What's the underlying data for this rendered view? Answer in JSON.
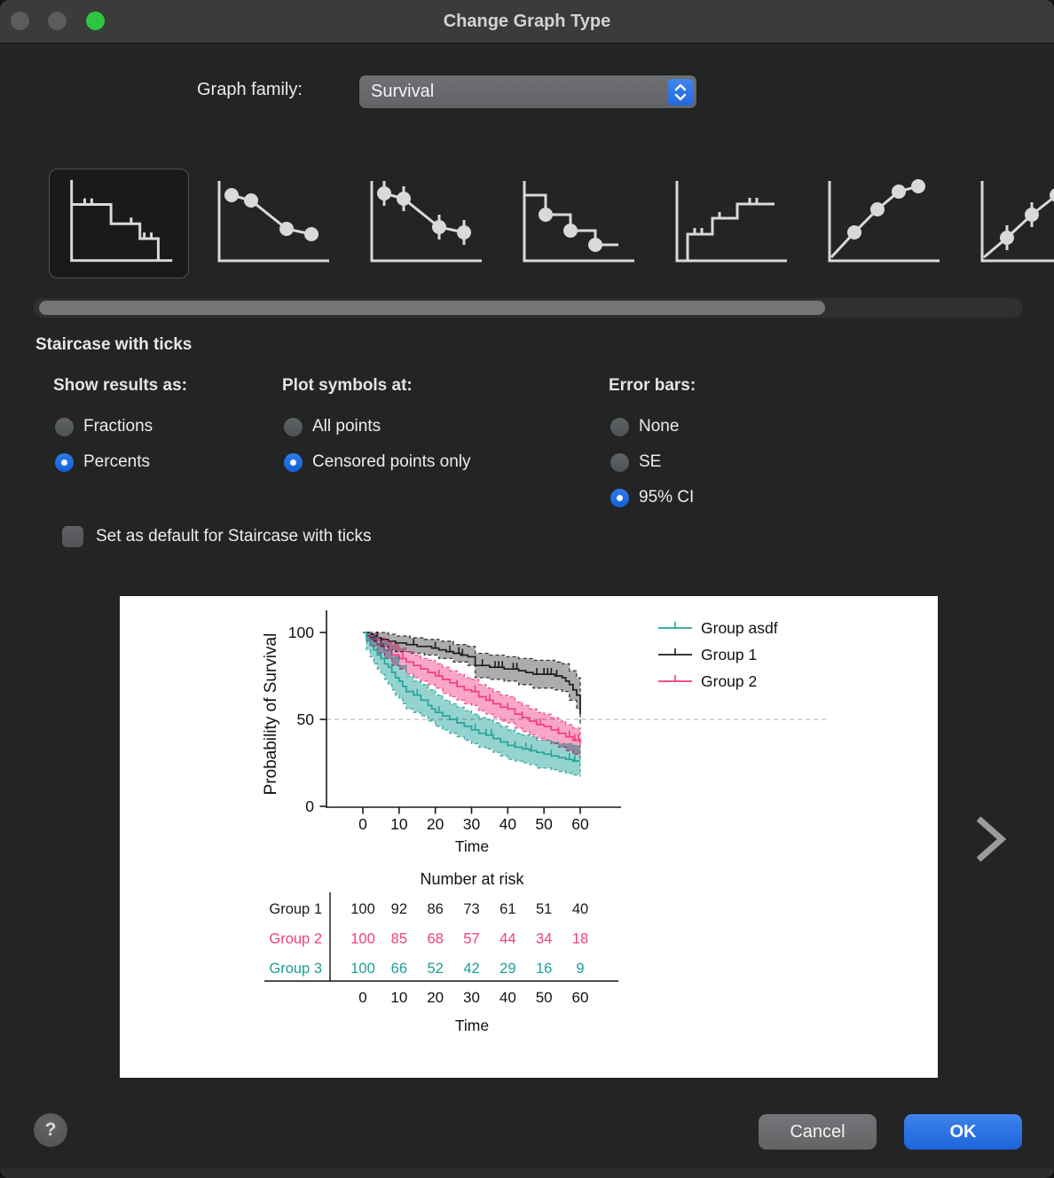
{
  "window": {
    "title": "Change Graph Type"
  },
  "graph_family": {
    "label": "Graph family:",
    "value": "Survival"
  },
  "thumbnails": [
    {
      "name": "staircase-with-ticks",
      "selected": true
    },
    {
      "name": "symbols-connecting-line-down",
      "selected": false
    },
    {
      "name": "symbols-error-bars-down",
      "selected": false
    },
    {
      "name": "staircase-with-symbols",
      "selected": false
    },
    {
      "name": "staircase-with-ticks-up",
      "selected": false
    },
    {
      "name": "symbols-connecting-line-up",
      "selected": false
    },
    {
      "name": "symbols-error-bars-up",
      "selected": false
    }
  ],
  "graph_type": {
    "name": "Staircase with ticks"
  },
  "options": {
    "show_results": {
      "heading": "Show results as:",
      "items": [
        {
          "label": "Fractions",
          "selected": false
        },
        {
          "label": "Percents",
          "selected": true
        }
      ]
    },
    "plot_symbols": {
      "heading": "Plot symbols at:",
      "items": [
        {
          "label": "All points",
          "selected": false
        },
        {
          "label": "Censored points only",
          "selected": true
        }
      ]
    },
    "error_bars": {
      "heading": "Error bars:",
      "items": [
        {
          "label": "None",
          "selected": false
        },
        {
          "label": "SE",
          "selected": false
        },
        {
          "label": "95% CI",
          "selected": true
        }
      ]
    }
  },
  "default_checkbox": {
    "label": "Set as default for Staircase with ticks",
    "checked": false
  },
  "buttons": {
    "cancel": "Cancel",
    "ok": "OK",
    "help": "?"
  },
  "chart_data": {
    "type": "line",
    "subtype": "kaplan-meier-staircase-with-95ci",
    "xlabel": "Time",
    "ylabel": "Probability of Survival",
    "xlim": [
      0,
      60
    ],
    "ylim": [
      0,
      100
    ],
    "xticks": [
      0,
      10,
      20,
      30,
      40,
      50,
      60
    ],
    "yticks": [
      0,
      50,
      100
    ],
    "refline_y": 50,
    "grid": "off",
    "legend_position": "right",
    "legend": [
      {
        "name": "Group asdf",
        "color": "#27A39A"
      },
      {
        "name": "Group 1",
        "color": "#1C1C1C"
      },
      {
        "name": "Group 2",
        "color": "#F23D80"
      }
    ],
    "series": [
      {
        "name": "Group 1",
        "color": "#1C1C1C",
        "band_color": "#ACACAC",
        "steps": [
          [
            0,
            100
          ],
          [
            2,
            99
          ],
          [
            3,
            98
          ],
          [
            4,
            97
          ],
          [
            5,
            96
          ],
          [
            7,
            95
          ],
          [
            9,
            94
          ],
          [
            12,
            93
          ],
          [
            15,
            92
          ],
          [
            19,
            91
          ],
          [
            21,
            90
          ],
          [
            23,
            89
          ],
          [
            25,
            88
          ],
          [
            27,
            87
          ],
          [
            29,
            86
          ],
          [
            31,
            81
          ],
          [
            35,
            80
          ],
          [
            39,
            79
          ],
          [
            43,
            78
          ],
          [
            45,
            77
          ],
          [
            47,
            76
          ],
          [
            53,
            75
          ],
          [
            55,
            74
          ],
          [
            56,
            72
          ],
          [
            57,
            70
          ],
          [
            58,
            67
          ],
          [
            59,
            64
          ],
          [
            60,
            53
          ]
        ],
        "upper": [
          [
            0,
            100
          ],
          [
            4,
            100
          ],
          [
            7,
            99
          ],
          [
            9,
            98
          ],
          [
            13,
            97
          ],
          [
            17,
            96
          ],
          [
            21,
            95
          ],
          [
            25,
            93
          ],
          [
            29,
            92
          ],
          [
            31,
            88
          ],
          [
            35,
            87
          ],
          [
            39,
            86
          ],
          [
            43,
            85
          ],
          [
            47,
            84
          ],
          [
            53,
            83
          ],
          [
            55,
            82
          ],
          [
            57,
            78
          ],
          [
            59,
            74
          ],
          [
            60,
            70
          ]
        ],
        "lower": [
          [
            0,
            100
          ],
          [
            2,
            97
          ],
          [
            3,
            95
          ],
          [
            5,
            92
          ],
          [
            7,
            90
          ],
          [
            9,
            89
          ],
          [
            13,
            88
          ],
          [
            17,
            87
          ],
          [
            21,
            85
          ],
          [
            25,
            83
          ],
          [
            29,
            81
          ],
          [
            31,
            74
          ],
          [
            35,
            73
          ],
          [
            39,
            72
          ],
          [
            43,
            70
          ],
          [
            47,
            68
          ],
          [
            53,
            67
          ],
          [
            55,
            66
          ],
          [
            57,
            61
          ],
          [
            59,
            56
          ],
          [
            60,
            47
          ]
        ],
        "censored": [
          4,
          14,
          20,
          24,
          26.5,
          27.5,
          33,
          36.5,
          37.5,
          38.5,
          41.5,
          42.5,
          48,
          50,
          51,
          52,
          53.5,
          58
        ]
      },
      {
        "name": "Group 2",
        "color": "#F23D80",
        "band_color": "#F9A6C8",
        "steps": [
          [
            0,
            100
          ],
          [
            1,
            98
          ],
          [
            2,
            96
          ],
          [
            4,
            93
          ],
          [
            6,
            90
          ],
          [
            8,
            87
          ],
          [
            10,
            85
          ],
          [
            12,
            83
          ],
          [
            14,
            81
          ],
          [
            16,
            79
          ],
          [
            18,
            77
          ],
          [
            20,
            75
          ],
          [
            22,
            73
          ],
          [
            24,
            71
          ],
          [
            26,
            69
          ],
          [
            28,
            67
          ],
          [
            30,
            66
          ],
          [
            32,
            63
          ],
          [
            34,
            61
          ],
          [
            36,
            59
          ],
          [
            38,
            57
          ],
          [
            40,
            56
          ],
          [
            42,
            53
          ],
          [
            44,
            51
          ],
          [
            46,
            49
          ],
          [
            48,
            47
          ],
          [
            50,
            46
          ],
          [
            52,
            44
          ],
          [
            54,
            42
          ],
          [
            56,
            40
          ],
          [
            58,
            38
          ],
          [
            60,
            36
          ]
        ],
        "upper": [
          [
            0,
            100
          ],
          [
            2,
            99
          ],
          [
            4,
            97
          ],
          [
            6,
            95
          ],
          [
            8,
            93
          ],
          [
            10,
            91
          ],
          [
            12,
            89
          ],
          [
            14,
            87
          ],
          [
            16,
            85
          ],
          [
            18,
            84
          ],
          [
            20,
            82
          ],
          [
            22,
            80
          ],
          [
            24,
            78
          ],
          [
            26,
            76
          ],
          [
            28,
            74
          ],
          [
            30,
            73
          ],
          [
            32,
            70
          ],
          [
            34,
            68
          ],
          [
            36,
            66
          ],
          [
            38,
            64
          ],
          [
            40,
            63
          ],
          [
            42,
            60
          ],
          [
            44,
            58
          ],
          [
            46,
            56
          ],
          [
            48,
            54
          ],
          [
            50,
            53
          ],
          [
            52,
            51
          ],
          [
            54,
            49
          ],
          [
            56,
            47
          ],
          [
            58,
            45
          ],
          [
            60,
            44
          ]
        ],
        "lower": [
          [
            0,
            100
          ],
          [
            1,
            95
          ],
          [
            2,
            92
          ],
          [
            4,
            88
          ],
          [
            6,
            85
          ],
          [
            8,
            81
          ],
          [
            10,
            79
          ],
          [
            12,
            76
          ],
          [
            14,
            74
          ],
          [
            16,
            72
          ],
          [
            18,
            70
          ],
          [
            20,
            68
          ],
          [
            22,
            65
          ],
          [
            24,
            63
          ],
          [
            26,
            61
          ],
          [
            28,
            59
          ],
          [
            30,
            58
          ],
          [
            32,
            55
          ],
          [
            34,
            53
          ],
          [
            36,
            51
          ],
          [
            38,
            49
          ],
          [
            40,
            48
          ],
          [
            42,
            45
          ],
          [
            44,
            43
          ],
          [
            46,
            41
          ],
          [
            48,
            39
          ],
          [
            50,
            38
          ],
          [
            52,
            36
          ],
          [
            54,
            34
          ],
          [
            56,
            32
          ],
          [
            58,
            30
          ],
          [
            60,
            28
          ]
        ],
        "censored": [
          6,
          11,
          21,
          26,
          31,
          35,
          40,
          44,
          49,
          54,
          57,
          58.5,
          59.5
        ]
      },
      {
        "name": "Group asdf",
        "color": "#27A39A",
        "band_color": "#95D3CF",
        "steps": [
          [
            0,
            100
          ],
          [
            1,
            96
          ],
          [
            2,
            93
          ],
          [
            3,
            90
          ],
          [
            4,
            87
          ],
          [
            5,
            85
          ],
          [
            6,
            82
          ],
          [
            7,
            80
          ],
          [
            8,
            77
          ],
          [
            9,
            74
          ],
          [
            10,
            72
          ],
          [
            11,
            69
          ],
          [
            12,
            66
          ],
          [
            14,
            64
          ],
          [
            16,
            61
          ],
          [
            18,
            58
          ],
          [
            19,
            56
          ],
          [
            20,
            54
          ],
          [
            22,
            52
          ],
          [
            24,
            50
          ],
          [
            26,
            48
          ],
          [
            28,
            46
          ],
          [
            30,
            44
          ],
          [
            32,
            42
          ],
          [
            34,
            41
          ],
          [
            36,
            39
          ],
          [
            38,
            37
          ],
          [
            40,
            35
          ],
          [
            42,
            34
          ],
          [
            44,
            33
          ],
          [
            46,
            32
          ],
          [
            48,
            31
          ],
          [
            50,
            30
          ],
          [
            52,
            29
          ],
          [
            54,
            28
          ],
          [
            56,
            27
          ],
          [
            58,
            26
          ],
          [
            60,
            26
          ]
        ],
        "upper": [
          [
            0,
            100
          ],
          [
            2,
            98
          ],
          [
            4,
            94
          ],
          [
            6,
            90
          ],
          [
            8,
            86
          ],
          [
            10,
            81
          ],
          [
            12,
            75
          ],
          [
            14,
            72
          ],
          [
            16,
            70
          ],
          [
            18,
            67
          ],
          [
            20,
            64
          ],
          [
            22,
            61
          ],
          [
            24,
            59
          ],
          [
            26,
            57
          ],
          [
            28,
            55
          ],
          [
            30,
            53
          ],
          [
            32,
            51
          ],
          [
            34,
            50
          ],
          [
            36,
            48
          ],
          [
            38,
            46
          ],
          [
            40,
            44
          ],
          [
            42,
            42
          ],
          [
            44,
            41
          ],
          [
            46,
            40
          ],
          [
            48,
            38
          ],
          [
            50,
            38
          ],
          [
            52,
            37
          ],
          [
            54,
            36
          ],
          [
            56,
            36
          ],
          [
            58,
            35
          ],
          [
            60,
            35
          ]
        ],
        "lower": [
          [
            0,
            100
          ],
          [
            1,
            90
          ],
          [
            2,
            86
          ],
          [
            3,
            82
          ],
          [
            4,
            79
          ],
          [
            5,
            76
          ],
          [
            6,
            73
          ],
          [
            7,
            70
          ],
          [
            8,
            67
          ],
          [
            9,
            64
          ],
          [
            10,
            62
          ],
          [
            11,
            59
          ],
          [
            12,
            56
          ],
          [
            14,
            54
          ],
          [
            16,
            52
          ],
          [
            18,
            49
          ],
          [
            20,
            46
          ],
          [
            22,
            44
          ],
          [
            24,
            42
          ],
          [
            26,
            40
          ],
          [
            28,
            38
          ],
          [
            30,
            36
          ],
          [
            32,
            34
          ],
          [
            34,
            33
          ],
          [
            36,
            31
          ],
          [
            38,
            29
          ],
          [
            40,
            27
          ],
          [
            42,
            26
          ],
          [
            44,
            25
          ],
          [
            46,
            24
          ],
          [
            48,
            22
          ],
          [
            50,
            22
          ],
          [
            52,
            21
          ],
          [
            54,
            20
          ],
          [
            56,
            19
          ],
          [
            58,
            18
          ],
          [
            60,
            17
          ]
        ],
        "censored": [
          5,
          9,
          15,
          21,
          26,
          31,
          34,
          35.5,
          42,
          45,
          46.5,
          52,
          57,
          58.5
        ]
      }
    ],
    "number_at_risk": {
      "title": "Number at risk",
      "xlabel": "Time",
      "times": [
        0,
        10,
        20,
        30,
        40,
        50,
        60
      ],
      "rows": [
        {
          "label": "Group 1",
          "color": "#1C1C1C",
          "values": [
            100,
            92,
            86,
            73,
            61,
            51,
            40
          ]
        },
        {
          "label": "Group 2",
          "color": "#F23D80",
          "values": [
            100,
            85,
            68,
            57,
            44,
            34,
            18
          ]
        },
        {
          "label": "Group 3",
          "color": "#1C9E97",
          "values": [
            100,
            66,
            52,
            42,
            29,
            16,
            9
          ]
        }
      ]
    }
  }
}
